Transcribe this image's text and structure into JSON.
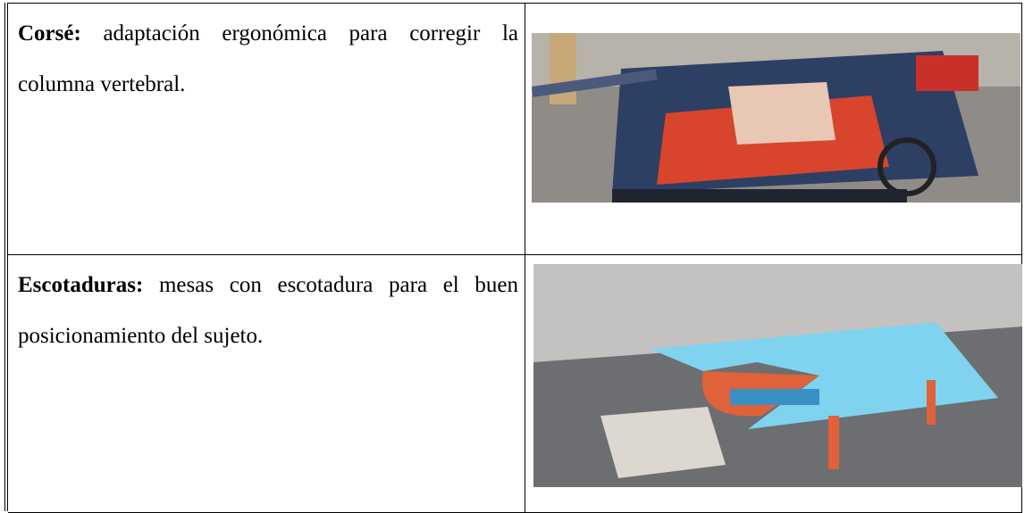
{
  "table": {
    "rows": [
      {
        "term": "Corsé:",
        "description": "adaptación ergonómica para corregir la columna vertebral."
      },
      {
        "term": "Escotaduras:",
        "description": "mesas con escotadura para el buen posicionamiento del sujeto."
      }
    ]
  }
}
